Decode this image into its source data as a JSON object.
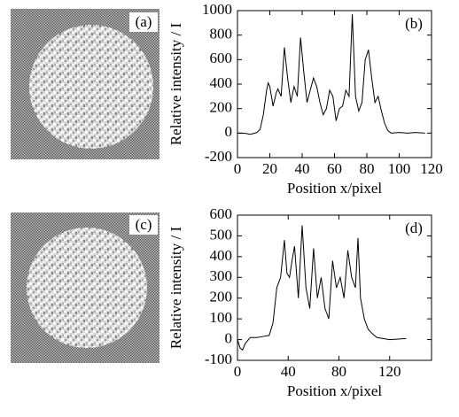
{
  "images": [
    {
      "label": "(a)"
    },
    {
      "label": "(c)"
    }
  ],
  "chart_data": [
    {
      "type": "line",
      "panel_label": "(b)",
      "x_label": "Position x/pixel",
      "y_label": "Relative intensity / I",
      "color": "#000000",
      "xlim": [
        0,
        120
      ],
      "xticks": [
        0,
        20,
        40,
        60,
        80,
        100,
        120
      ],
      "ylim": [
        -200,
        1000
      ],
      "yticks": [
        -200,
        0,
        200,
        400,
        600,
        800,
        1000
      ],
      "x": [
        0,
        4,
        8,
        12,
        14,
        16,
        18,
        19,
        20,
        22,
        24,
        25,
        27,
        29,
        31,
        33,
        35,
        37,
        39,
        41,
        43,
        45,
        47,
        49,
        51,
        53,
        55,
        57,
        59,
        61,
        63,
        65,
        67,
        69,
        71,
        73,
        75,
        77,
        79,
        81,
        83,
        85,
        87,
        89,
        91,
        93,
        95,
        100,
        105,
        110,
        116
      ],
      "values": [
        0,
        0,
        -10,
        5,
        30,
        150,
        350,
        410,
        380,
        220,
        330,
        360,
        300,
        700,
        450,
        250,
        380,
        300,
        780,
        500,
        250,
        350,
        450,
        380,
        250,
        150,
        200,
        350,
        300,
        100,
        200,
        220,
        350,
        300,
        970,
        300,
        180,
        250,
        600,
        680,
        450,
        250,
        300,
        180,
        80,
        20,
        0,
        5,
        0,
        5,
        0
      ]
    },
    {
      "type": "line",
      "panel_label": "(d)",
      "x_label": "Position x/pixel",
      "y_label": "Relative intensity / I",
      "color": "#000000",
      "xlim": [
        0,
        153
      ],
      "xticks": [
        0,
        40,
        80,
        120
      ],
      "ylim": [
        -100,
        600
      ],
      "yticks": [
        -100,
        0,
        100,
        200,
        300,
        400,
        500,
        600
      ],
      "x": [
        0,
        2,
        4,
        6,
        10,
        15,
        20,
        25,
        28,
        31,
        34,
        37,
        39,
        41,
        43,
        45,
        48,
        51,
        54,
        57,
        60,
        63,
        66,
        69,
        72,
        75,
        78,
        81,
        84,
        87,
        90,
        93,
        95,
        97,
        100,
        103,
        106,
        110,
        120,
        133
      ],
      "values": [
        0,
        -40,
        -50,
        -20,
        10,
        10,
        15,
        20,
        80,
        250,
        300,
        480,
        320,
        300,
        380,
        450,
        200,
        550,
        250,
        150,
        440,
        200,
        300,
        150,
        100,
        380,
        250,
        300,
        200,
        430,
        300,
        250,
        490,
        200,
        100,
        50,
        30,
        10,
        0,
        5
      ]
    }
  ]
}
